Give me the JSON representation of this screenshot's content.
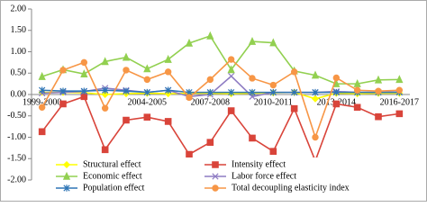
{
  "chart_data": {
    "type": "line",
    "categories": [
      "1999-2000",
      null,
      null,
      null,
      null,
      "2004-2005",
      null,
      null,
      "2007-2008",
      null,
      null,
      "2010-2011",
      null,
      null,
      "2013-2014",
      null,
      null,
      "2016-2017"
    ],
    "ylim": [
      -2,
      2
    ],
    "yticks": [
      {
        "value": 2,
        "label": "2.00"
      },
      {
        "value": 1.5,
        "label": "1.50"
      },
      {
        "value": 1,
        "label": "1.00"
      },
      {
        "value": 0.5,
        "label": "0.50"
      },
      {
        "value": 0,
        "label": "0.00"
      },
      {
        "value": -0.5,
        "label": "-0.50"
      },
      {
        "value": -1,
        "label": "-1.00"
      },
      {
        "value": -1.5,
        "label": "-1.50"
      },
      {
        "value": -2,
        "label": "-2.00"
      }
    ],
    "grid": false,
    "series": [
      {
        "name": "Structural effect",
        "color": "#ffff00",
        "marker": "diamond",
        "values": [
          0.05,
          0.05,
          0.04,
          0.0,
          0.02,
          0.03,
          0.02,
          0.03,
          0.03,
          0.02,
          0.03,
          0.04,
          0.05,
          -0.1,
          0.03,
          0.02,
          0.03,
          0.03
        ]
      },
      {
        "name": "Intensity effect",
        "color": "#d9443a",
        "marker": "square",
        "values": [
          -0.87,
          -0.22,
          -0.05,
          -1.29,
          -0.6,
          -0.53,
          -0.63,
          -1.4,
          -1.12,
          -0.38,
          -1.02,
          -1.33,
          -0.33,
          -1.55,
          -0.22,
          -0.3,
          -0.52,
          -0.45
        ]
      },
      {
        "name": "Economic effect",
        "color": "#92d050",
        "marker": "triangle",
        "values": [
          0.42,
          0.58,
          0.48,
          0.77,
          0.87,
          0.6,
          0.82,
          1.2,
          1.37,
          0.58,
          1.24,
          1.21,
          0.55,
          0.45,
          0.25,
          0.25,
          0.34,
          0.35
        ]
      },
      {
        "name": "Labor force effect",
        "color": "#8e7cc3",
        "marker": "x",
        "values": [
          0.03,
          0.05,
          0.07,
          0.15,
          0.1,
          0.05,
          0.1,
          -0.05,
          0.0,
          0.43,
          -0.05,
          0.05,
          0.05,
          0.05,
          0.07,
          0.05,
          0.05,
          0.06
        ]
      },
      {
        "name": "Population effect",
        "color": "#2e75b6",
        "marker": "asterisk",
        "values": [
          0.1,
          0.08,
          0.08,
          0.1,
          0.08,
          0.05,
          0.1,
          0.05,
          0.05,
          0.05,
          0.05,
          0.05,
          0.05,
          0.05,
          0.05,
          0.05,
          0.05,
          0.05
        ]
      },
      {
        "name": "Total decoupling elasticity index",
        "color": "#f79646",
        "marker": "circle",
        "values": [
          -0.3,
          0.57,
          0.75,
          -0.32,
          0.57,
          0.35,
          0.53,
          -0.07,
          0.35,
          0.82,
          0.38,
          0.22,
          0.53,
          -1.0,
          0.39,
          0.1,
          0.08,
          0.1
        ]
      }
    ]
  }
}
